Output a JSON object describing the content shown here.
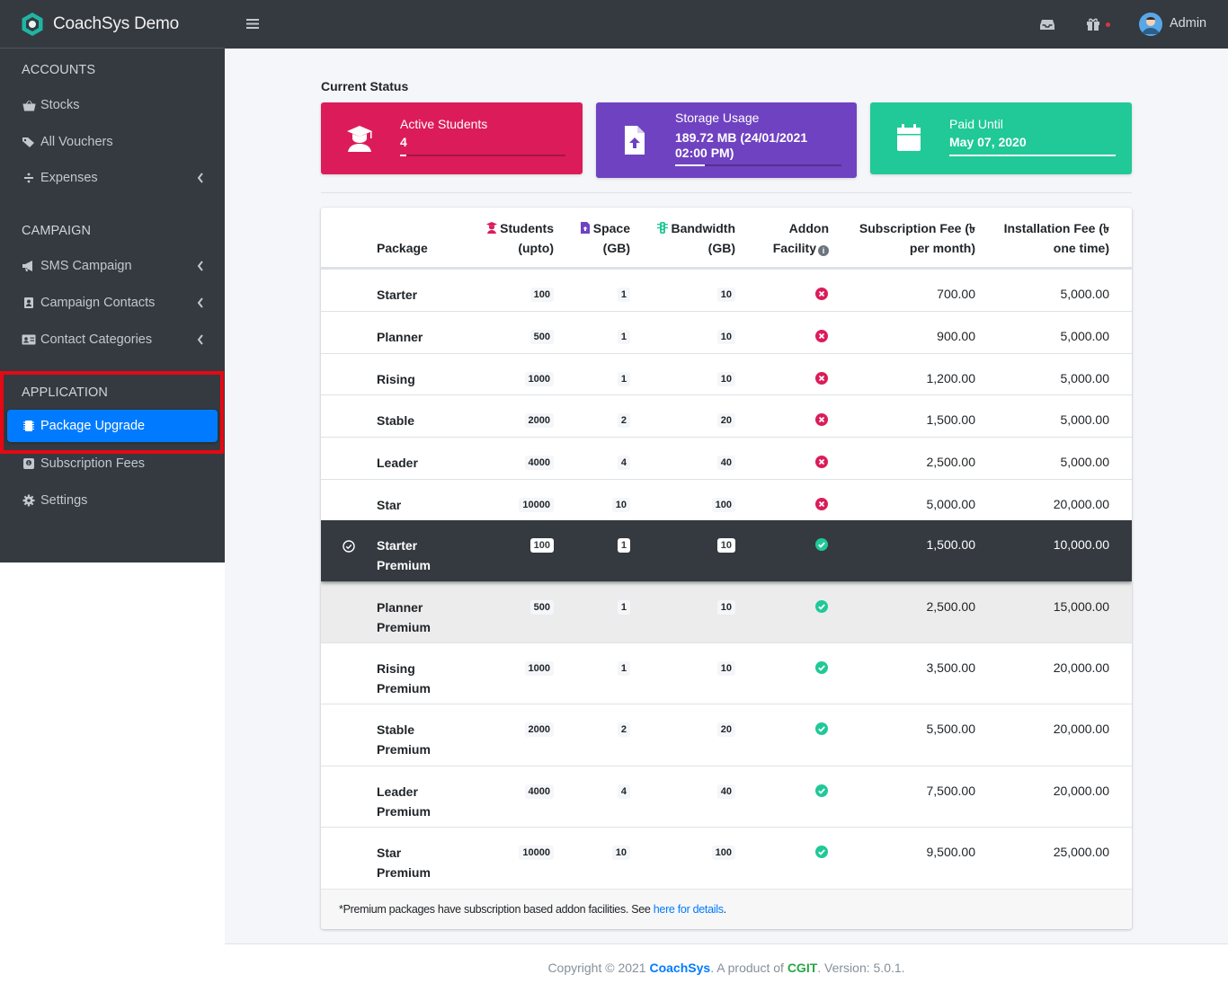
{
  "brand": {
    "name": "CoachSys Demo"
  },
  "sidebar": {
    "headers": [
      "ACCOUNTS",
      "CAMPAIGN",
      "APPLICATION"
    ],
    "items": [
      {
        "label": "Stocks"
      },
      {
        "label": "All Vouchers"
      },
      {
        "label": "Expenses"
      },
      {
        "label": "SMS Campaign"
      },
      {
        "label": "Campaign Contacts"
      },
      {
        "label": "Contact Categories"
      },
      {
        "label": "Package Upgrade"
      },
      {
        "label": "Subscription Fees"
      },
      {
        "label": "Settings"
      }
    ]
  },
  "topbar": {
    "user": "Admin"
  },
  "status": {
    "title": "Current Status",
    "students": {
      "label": "Active Students",
      "value": "4",
      "color": "#dc1c5a"
    },
    "storage": {
      "label": "Storage Usage",
      "value_line1": "189.72 MB (24/01/2021",
      "value_line2": "02:00 PM)",
      "color": "#6f42c1"
    },
    "paid": {
      "label": "Paid Until",
      "value": "May 07, 2020",
      "color": "#20c997"
    }
  },
  "table": {
    "headers": {
      "package": "Package",
      "students_1": "Students",
      "students_2": "(upto)",
      "space_1": "Space",
      "space_2": "(GB)",
      "bandwidth_1": "Bandwidth",
      "bandwidth_2": "(GB)",
      "addon_1": "Addon",
      "addon_2": "Facility",
      "sub_1": "Subscription Fee (৳",
      "sub_2": "per month)",
      "inst_1": "Installation Fee (৳",
      "inst_2": "one time)"
    },
    "rows": [
      {
        "name1": "Starter",
        "name2": "",
        "students": "100",
        "space": "1",
        "bandwidth": "10",
        "addon": false,
        "sub": "700.00",
        "inst": "5,000.00"
      },
      {
        "name1": "Planner",
        "name2": "",
        "students": "500",
        "space": "1",
        "bandwidth": "10",
        "addon": false,
        "sub": "900.00",
        "inst": "5,000.00"
      },
      {
        "name1": "Rising",
        "name2": "",
        "students": "1000",
        "space": "1",
        "bandwidth": "10",
        "addon": false,
        "sub": "1,200.00",
        "inst": "5,000.00"
      },
      {
        "name1": "Stable",
        "name2": "",
        "students": "2000",
        "space": "2",
        "bandwidth": "20",
        "addon": false,
        "sub": "1,500.00",
        "inst": "5,000.00"
      },
      {
        "name1": "Leader",
        "name2": "",
        "students": "4000",
        "space": "4",
        "bandwidth": "40",
        "addon": false,
        "sub": "2,500.00",
        "inst": "5,000.00"
      },
      {
        "name1": "Star",
        "name2": "",
        "students": "10000",
        "space": "10",
        "bandwidth": "100",
        "addon": false,
        "sub": "5,000.00",
        "inst": "20,000.00"
      },
      {
        "name1": "Starter",
        "name2": "Premium",
        "students": "100",
        "space": "1",
        "bandwidth": "10",
        "addon": true,
        "sub": "1,500.00",
        "inst": "10,000.00",
        "selected": true
      },
      {
        "name1": "Planner",
        "name2": "Premium",
        "students": "500",
        "space": "1",
        "bandwidth": "10",
        "addon": true,
        "sub": "2,500.00",
        "inst": "15,000.00",
        "hover": true
      },
      {
        "name1": "Rising",
        "name2": "Premium",
        "students": "1000",
        "space": "1",
        "bandwidth": "10",
        "addon": true,
        "sub": "3,500.00",
        "inst": "20,000.00"
      },
      {
        "name1": "Stable",
        "name2": "Premium",
        "students": "2000",
        "space": "2",
        "bandwidth": "20",
        "addon": true,
        "sub": "5,500.00",
        "inst": "20,000.00"
      },
      {
        "name1": "Leader",
        "name2": "Premium",
        "students": "4000",
        "space": "4",
        "bandwidth": "40",
        "addon": true,
        "sub": "7,500.00",
        "inst": "20,000.00"
      },
      {
        "name1": "Star",
        "name2": "Premium",
        "students": "10000",
        "space": "10",
        "bandwidth": "100",
        "addon": true,
        "sub": "9,500.00",
        "inst": "25,000.00"
      }
    ],
    "note_prefix": "*Premium packages have subscription based addon facilities. See ",
    "note_link": "here for details",
    "note_suffix": "."
  },
  "footer": {
    "prefix": "Copyright © 2021 ",
    "brand": "CoachSys",
    "middle": ". A product of ",
    "company": "CGIT",
    "suffix": ". Version: 5.0.1."
  },
  "icons": {
    "addon_yes": "check-circle-icon",
    "addon_no": "times-circle-icon"
  }
}
